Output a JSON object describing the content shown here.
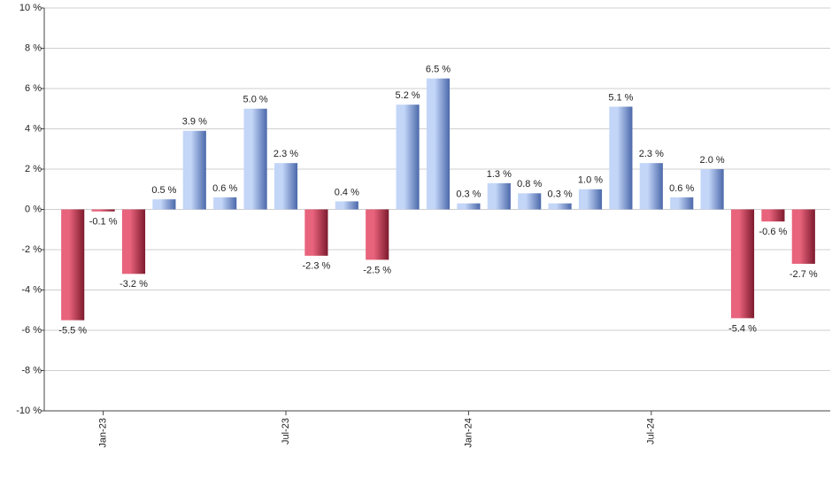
{
  "chart_data": {
    "type": "bar",
    "categories": [
      null,
      "Jan-23",
      null,
      null,
      null,
      null,
      null,
      "Jul-23",
      null,
      null,
      null,
      null,
      null,
      "Jan-24",
      null,
      null,
      null,
      null,
      null,
      "Jul-24",
      null,
      null,
      null,
      null,
      null
    ],
    "values": [
      -5.5,
      -0.1,
      -3.2,
      0.5,
      3.9,
      0.6,
      5.0,
      2.3,
      -2.3,
      0.4,
      -2.5,
      5.2,
      6.5,
      0.3,
      1.3,
      0.8,
      0.3,
      1.0,
      5.1,
      2.3,
      0.6,
      2.0,
      -5.4,
      -0.6,
      -2.7
    ],
    "value_labels": [
      "-5.5 %",
      "-0.1 %",
      "-3.2 %",
      "0.5 %",
      "3.9 %",
      "0.6 %",
      "5.0 %",
      "2.3 %",
      "-2.3 %",
      "0.4 %",
      "-2.5 %",
      "5.2 %",
      "6.5 %",
      "0.3 %",
      "1.3 %",
      "0.8 %",
      "0.3 %",
      "1.0 %",
      "5.1 %",
      "2.3 %",
      "0.6 %",
      "2.0 %",
      "-5.4 %",
      "-0.6 %",
      "-2.7 %"
    ],
    "colors": {
      "positive": [
        "#c3d6f8",
        "#4b68aa"
      ],
      "negative": [
        "#e8637c",
        "#7d1a2d"
      ]
    },
    "ylim": [
      -10,
      10
    ],
    "yticks": [
      {
        "value": -10,
        "label": "-10 %"
      },
      {
        "value": -8,
        "label": "-8 %"
      },
      {
        "value": -6,
        "label": "-6 %"
      },
      {
        "value": -4,
        "label": "-4 %"
      },
      {
        "value": -2,
        "label": "-2 %"
      },
      {
        "value": 0,
        "label": "0 %"
      },
      {
        "value": 2,
        "label": "2 %"
      },
      {
        "value": 4,
        "label": "4 %"
      },
      {
        "value": 6,
        "label": "6 %"
      },
      {
        "value": 8,
        "label": "8 %"
      },
      {
        "value": 10,
        "label": "10 %"
      }
    ],
    "grid": true
  }
}
